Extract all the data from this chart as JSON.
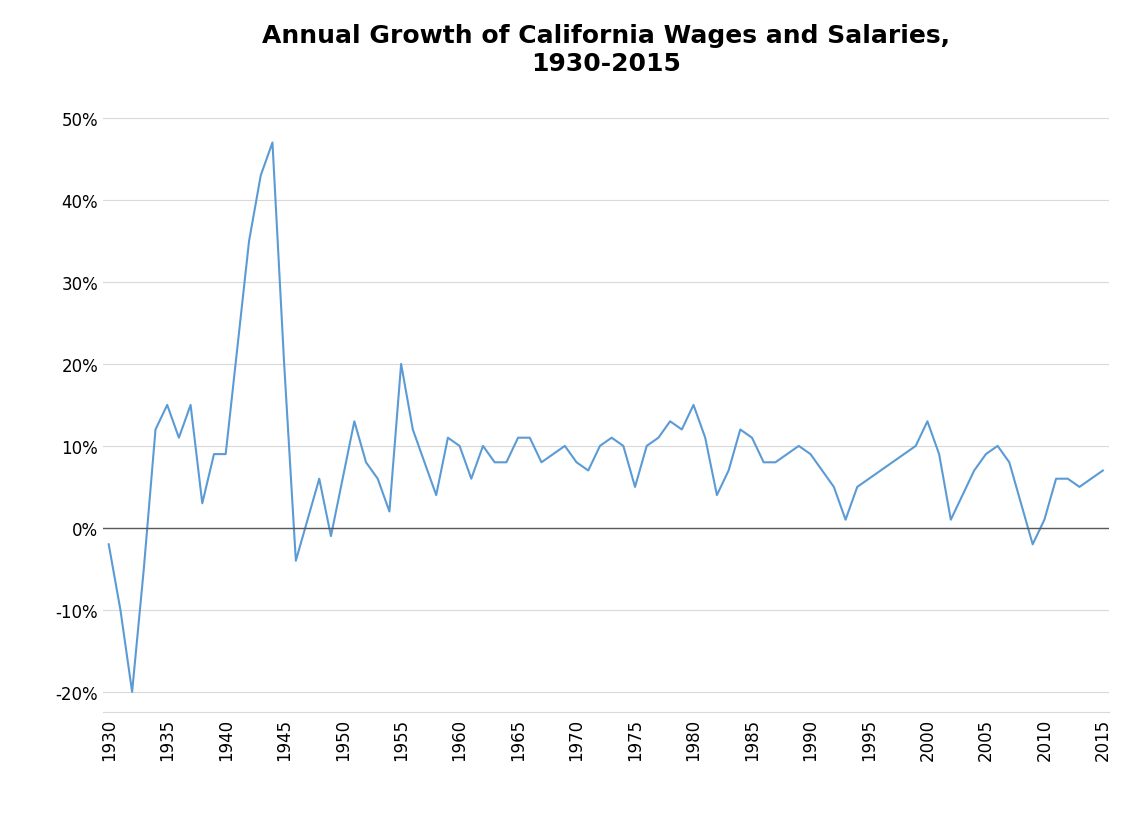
{
  "title": "Annual Growth of California Wages and Salaries,\n1930-2015",
  "title_fontsize": 18,
  "line_color": "#5B9BD5",
  "background_color": "#ffffff",
  "years": [
    1930,
    1931,
    1932,
    1933,
    1934,
    1935,
    1936,
    1937,
    1938,
    1939,
    1940,
    1941,
    1942,
    1943,
    1944,
    1945,
    1946,
    1947,
    1948,
    1949,
    1950,
    1951,
    1952,
    1953,
    1954,
    1955,
    1956,
    1957,
    1958,
    1959,
    1960,
    1961,
    1962,
    1963,
    1964,
    1965,
    1966,
    1967,
    1968,
    1969,
    1970,
    1971,
    1972,
    1973,
    1974,
    1975,
    1976,
    1977,
    1978,
    1979,
    1980,
    1981,
    1982,
    1983,
    1984,
    1985,
    1986,
    1987,
    1988,
    1989,
    1990,
    1991,
    1992,
    1993,
    1994,
    1995,
    1996,
    1997,
    1998,
    1999,
    2000,
    2001,
    2002,
    2003,
    2004,
    2005,
    2006,
    2007,
    2008,
    2009,
    2010,
    2011,
    2012,
    2013,
    2014,
    2015
  ],
  "values": [
    -0.02,
    -0.1,
    -0.2,
    -0.05,
    0.12,
    0.15,
    0.11,
    0.15,
    0.03,
    0.09,
    0.09,
    0.22,
    0.35,
    0.43,
    0.47,
    0.2,
    -0.04,
    0.01,
    0.06,
    -0.01,
    0.06,
    0.13,
    0.08,
    0.06,
    0.02,
    0.2,
    0.12,
    0.08,
    0.04,
    0.11,
    0.1,
    0.06,
    0.1,
    0.08,
    0.08,
    0.11,
    0.11,
    0.08,
    0.09,
    0.1,
    0.08,
    0.07,
    0.1,
    0.11,
    0.1,
    0.05,
    0.1,
    0.11,
    0.13,
    0.12,
    0.15,
    0.11,
    0.04,
    0.07,
    0.12,
    0.11,
    0.08,
    0.08,
    0.09,
    0.1,
    0.09,
    0.07,
    0.05,
    0.01,
    0.05,
    0.06,
    0.07,
    0.08,
    0.09,
    0.1,
    0.13,
    0.09,
    0.01,
    0.04,
    0.07,
    0.09,
    0.1,
    0.08,
    0.03,
    -0.02,
    0.01,
    0.06,
    0.06,
    0.05,
    0.06,
    0.07
  ],
  "xlim": [
    1929.5,
    2015.5
  ],
  "ylim": [
    -0.225,
    0.525
  ],
  "yticks": [
    -0.2,
    -0.1,
    0.0,
    0.1,
    0.2,
    0.3,
    0.4,
    0.5
  ],
  "xticks": [
    1930,
    1935,
    1940,
    1945,
    1950,
    1955,
    1960,
    1965,
    1970,
    1975,
    1980,
    1985,
    1990,
    1995,
    2000,
    2005,
    2010,
    2015
  ],
  "grid_color": "#D9D9D9",
  "linewidth": 1.5,
  "tick_fontsize": 12,
  "bottom_border_color": "#595959"
}
